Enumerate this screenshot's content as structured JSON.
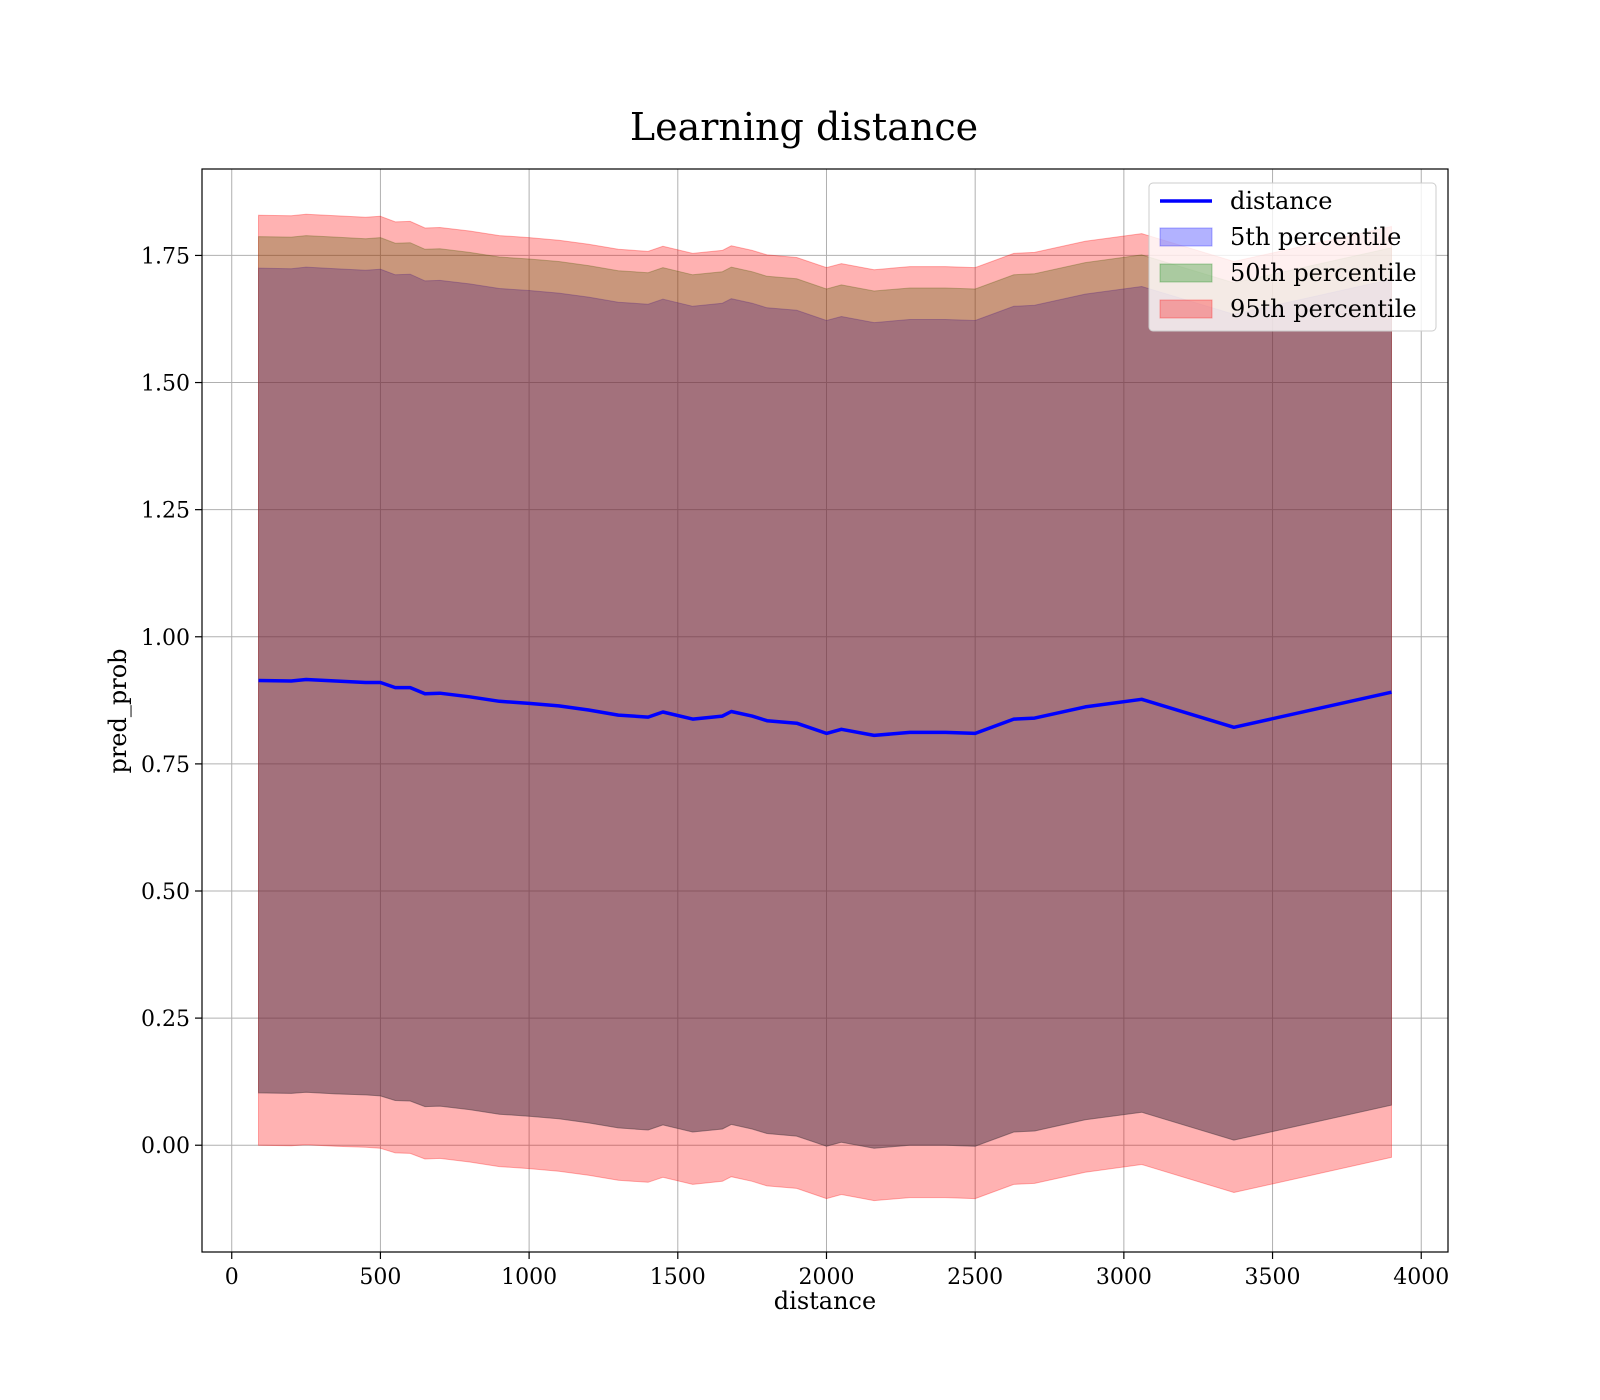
{
  "chart_data": {
    "type": "line",
    "title": "Learning distance",
    "xlabel": "distance",
    "ylabel": "pred_prob",
    "xlim": [
      -100,
      4090
    ],
    "ylim": [
      -0.21,
      1.92
    ],
    "xticks": [
      0,
      500,
      1000,
      1500,
      2000,
      2500,
      3000,
      3500,
      4000
    ],
    "xtick_labels": [
      "0",
      "500",
      "1000",
      "1500",
      "2000",
      "2500",
      "3000",
      "3500",
      "4000"
    ],
    "yticks": [
      0.0,
      0.25,
      0.5,
      0.75,
      1.0,
      1.25,
      1.5,
      1.75
    ],
    "ytick_labels": [
      "0.00",
      "0.25",
      "0.50",
      "0.75",
      "1.00",
      "1.25",
      "1.50",
      "1.75"
    ],
    "grid": true,
    "legend_position": "top-right",
    "x": [
      90,
      200,
      250,
      350,
      450,
      500,
      550,
      600,
      650,
      700,
      800,
      900,
      1000,
      1100,
      1200,
      1300,
      1400,
      1450,
      1550,
      1650,
      1680,
      1750,
      1800,
      1900,
      2000,
      2050,
      2160,
      2280,
      2400,
      2500,
      2630,
      2700,
      2870,
      3060,
      3370,
      3900
    ],
    "series": [
      {
        "name": "distance",
        "kind": "line",
        "color": "#0000ff",
        "values": [
          0.914,
          0.913,
          0.916,
          0.913,
          0.91,
          0.91,
          0.9,
          0.9,
          0.888,
          0.889,
          0.882,
          0.873,
          0.869,
          0.864,
          0.856,
          0.846,
          0.842,
          0.852,
          0.838,
          0.844,
          0.853,
          0.844,
          0.835,
          0.83,
          0.81,
          0.818,
          0.806,
          0.812,
          0.812,
          0.81,
          0.838,
          0.84,
          0.862,
          0.877,
          0.822,
          0.891
        ]
      },
      {
        "name": "5th percentile",
        "kind": "band",
        "color": "#0000ff",
        "opacity": 0.3,
        "lower": [
          0.103,
          0.102,
          0.104,
          0.101,
          0.099,
          0.097,
          0.088,
          0.087,
          0.076,
          0.077,
          0.07,
          0.061,
          0.057,
          0.052,
          0.044,
          0.034,
          0.03,
          0.04,
          0.026,
          0.032,
          0.041,
          0.032,
          0.023,
          0.018,
          -0.002,
          0.006,
          -0.006,
          0.0,
          0.0,
          -0.002,
          0.026,
          0.028,
          0.05,
          0.065,
          0.01,
          0.079
        ],
        "upper": [
          1.725,
          1.724,
          1.727,
          1.724,
          1.721,
          1.723,
          1.712,
          1.713,
          1.7,
          1.701,
          1.694,
          1.685,
          1.681,
          1.676,
          1.668,
          1.658,
          1.654,
          1.664,
          1.65,
          1.656,
          1.665,
          1.656,
          1.647,
          1.642,
          1.622,
          1.63,
          1.618,
          1.624,
          1.624,
          1.622,
          1.65,
          1.652,
          1.674,
          1.689,
          1.634,
          1.703
        ]
      },
      {
        "name": "50th percentile",
        "kind": "band",
        "color": "#008000",
        "opacity": 0.3,
        "lower": [
          0.103,
          0.102,
          0.104,
          0.101,
          0.099,
          0.097,
          0.088,
          0.087,
          0.076,
          0.077,
          0.07,
          0.061,
          0.057,
          0.052,
          0.044,
          0.034,
          0.03,
          0.04,
          0.026,
          0.032,
          0.041,
          0.032,
          0.023,
          0.018,
          -0.002,
          0.006,
          -0.006,
          0.0,
          0.0,
          -0.002,
          0.026,
          0.028,
          0.05,
          0.065,
          0.01,
          0.079
        ],
        "upper": [
          1.787,
          1.786,
          1.789,
          1.786,
          1.783,
          1.785,
          1.774,
          1.775,
          1.762,
          1.763,
          1.756,
          1.747,
          1.743,
          1.738,
          1.73,
          1.72,
          1.716,
          1.726,
          1.712,
          1.718,
          1.727,
          1.718,
          1.709,
          1.704,
          1.684,
          1.692,
          1.68,
          1.686,
          1.686,
          1.684,
          1.712,
          1.714,
          1.736,
          1.751,
          1.696,
          1.765
        ]
      },
      {
        "name": "95th percentile",
        "kind": "band",
        "color": "#ff0000",
        "opacity": 0.3,
        "lower": [
          0.041,
          0.04,
          0.042,
          0.039,
          0.037,
          0.035,
          0.026,
          0.025,
          0.014,
          0.015,
          0.008,
          -0.001,
          -0.005,
          -0.01,
          -0.018,
          -0.028,
          -0.032,
          -0.022,
          -0.036,
          -0.03,
          -0.021,
          -0.03,
          -0.039,
          -0.044,
          -0.064,
          -0.056,
          -0.068,
          -0.062,
          -0.062,
          -0.064,
          -0.036,
          -0.034,
          -0.012,
          0.003,
          -0.052,
          0.017
        ],
        "upper": [
          1.829,
          1.828,
          1.831,
          1.828,
          1.825,
          1.827,
          1.816,
          1.817,
          1.804,
          1.805,
          1.798,
          1.789,
          1.785,
          1.78,
          1.772,
          1.762,
          1.758,
          1.768,
          1.754,
          1.76,
          1.769,
          1.76,
          1.751,
          1.746,
          1.726,
          1.734,
          1.722,
          1.728,
          1.728,
          1.726,
          1.754,
          1.756,
          1.778,
          1.793,
          1.738,
          1.807
        ],
        "lower_full": [
          0.0,
          -0.001,
          0.001,
          -0.002,
          -0.004,
          -0.006,
          -0.015,
          -0.016,
          -0.027,
          -0.026,
          -0.033,
          -0.042,
          -0.046,
          -0.051,
          -0.059,
          -0.069,
          -0.073,
          -0.063,
          -0.077,
          -0.071,
          -0.062,
          -0.071,
          -0.08,
          -0.085,
          -0.105,
          -0.097,
          -0.109,
          -0.103,
          -0.103,
          -0.105,
          -0.077,
          -0.075,
          -0.053,
          -0.038,
          -0.093,
          -0.024
        ]
      }
    ]
  }
}
